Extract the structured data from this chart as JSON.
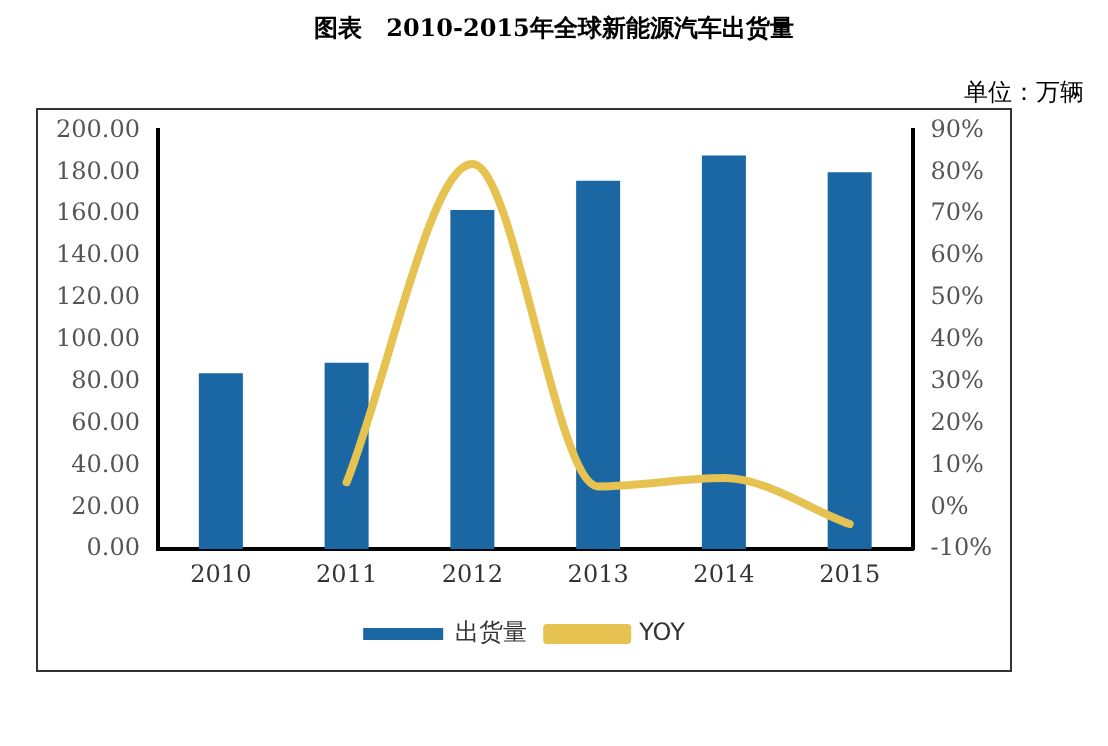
{
  "chart_data": {
    "type": "bar",
    "title": "图表　2010-2015年全球新能源汽车出货量",
    "annotations": [
      "单位：万辆"
    ],
    "categories": [
      "2010",
      "2011",
      "2012",
      "2013",
      "2014",
      "2015"
    ],
    "series": [
      {
        "name": "出货量",
        "color": "#1b67a3",
        "values": [
          84,
          89,
          162,
          176,
          188,
          180
        ]
      },
      {
        "name": "YOY",
        "type": "line",
        "axis": "y2",
        "color": "#e6c350",
        "values": [
          null,
          6,
          82,
          5,
          7,
          -4
        ]
      }
    ],
    "ylim": [
      0,
      200
    ],
    "yticks": [
      {
        "value": 0,
        "label": "0.00"
      },
      {
        "value": 20,
        "label": "20.00"
      },
      {
        "value": 40,
        "label": "40.00"
      },
      {
        "value": 60,
        "label": "60.00"
      },
      {
        "value": 80,
        "label": "80.00"
      },
      {
        "value": 100,
        "label": "100.00"
      },
      {
        "value": 120,
        "label": "120.00"
      },
      {
        "value": 140,
        "label": "140.00"
      },
      {
        "value": 160,
        "label": "160.00"
      },
      {
        "value": 180,
        "label": "180.00"
      },
      {
        "value": 200,
        "label": "200.00"
      }
    ],
    "y2lim": [
      -10,
      90
    ],
    "y2ticks": [
      {
        "value": -10,
        "label": "-10%"
      },
      {
        "value": 0,
        "label": "0%"
      },
      {
        "value": 10,
        "label": "10%"
      },
      {
        "value": 20,
        "label": "20%"
      },
      {
        "value": 30,
        "label": "30%"
      },
      {
        "value": 40,
        "label": "40%"
      },
      {
        "value": 50,
        "label": "50%"
      },
      {
        "value": 60,
        "label": "60%"
      },
      {
        "value": 70,
        "label": "70%"
      },
      {
        "value": 80,
        "label": "80%"
      },
      {
        "value": 90,
        "label": "90%"
      }
    ],
    "grid": false,
    "legend": "bottom",
    "marker": "none",
    "line_style": "solid"
  }
}
